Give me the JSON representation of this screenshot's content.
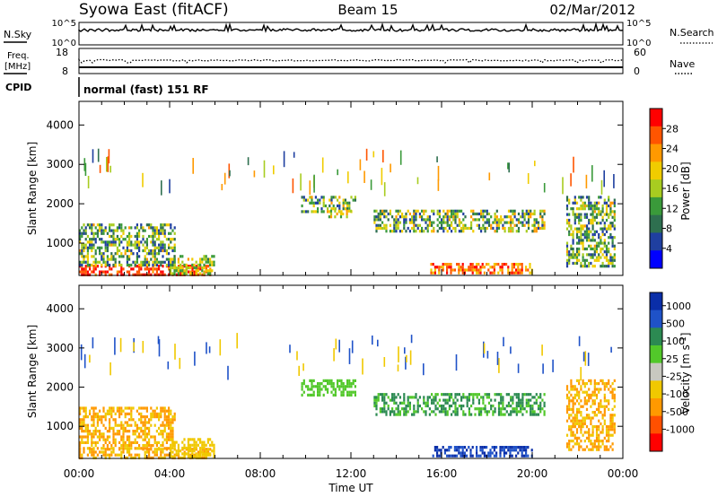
{
  "header": {
    "station": "Syowa East (fitACF)",
    "beam": "Beam 15",
    "date": "02/Mar/2012"
  },
  "summary_panels": {
    "nsky": {
      "label": "N.Sky",
      "right_label": "N.Search",
      "left_ticks": [
        "10^5",
        "10^0"
      ],
      "right_ticks": [
        "10^5",
        "10^0"
      ]
    },
    "freq": {
      "label_line1": "Freq.",
      "label_line2": "[MHz]",
      "right_label": "Nave",
      "left_ticks": [
        "18",
        "8"
      ],
      "right_ticks": [
        "60",
        "0"
      ]
    },
    "cpid": {
      "label": "CPID",
      "text": "normal (fast) 151 RF"
    }
  },
  "colors": {
    "power_scale": [
      "#0000ff",
      "#1f3fa0",
      "#2e6f4f",
      "#3a9a3a",
      "#a8cc20",
      "#f0cc00",
      "#ff9900",
      "#ff5500",
      "#ff0000"
    ],
    "velocity_scale": [
      "#0a2ea8",
      "#1f52c8",
      "#2c8a52",
      "#52c82a",
      "#c8c8c0",
      "#f0c800",
      "#ff9900",
      "#ff5000",
      "#ff0000"
    ]
  },
  "chart_data": [
    {
      "type": "heatmap",
      "name": "power",
      "ylabel": "Slant Range [km]",
      "yticks": [
        1000,
        2000,
        3000,
        4000
      ],
      "ylim": [
        180,
        4600
      ],
      "xlim": [
        0,
        24
      ],
      "colorbar": {
        "label": "Power [dB]",
        "ticks": [
          4,
          8,
          12,
          16,
          20,
          24,
          28
        ],
        "range": [
          0,
          32
        ]
      },
      "regions": [
        {
          "t0": 0.0,
          "t1": 5.8,
          "r0": 200,
          "r1": 450,
          "v0": 24,
          "v1": 32
        },
        {
          "t0": 0.0,
          "t1": 4.2,
          "r0": 450,
          "r1": 1500,
          "v0": 4,
          "v1": 22
        },
        {
          "t0": 4.0,
          "t1": 6.0,
          "r0": 250,
          "r1": 700,
          "v0": 10,
          "v1": 22
        },
        {
          "t0": 9.8,
          "t1": 12.2,
          "r0": 1800,
          "r1": 2200,
          "v0": 4,
          "v1": 22
        },
        {
          "t0": 11.0,
          "t1": 12.0,
          "r0": 1650,
          "r1": 1850,
          "v0": 12,
          "v1": 24
        },
        {
          "t0": 13.0,
          "t1": 20.5,
          "r0": 1300,
          "r1": 1850,
          "v0": 4,
          "v1": 24
        },
        {
          "t0": 15.5,
          "t1": 20.0,
          "r0": 250,
          "r1": 500,
          "v0": 18,
          "v1": 32
        },
        {
          "t0": 21.5,
          "t1": 23.6,
          "r0": 400,
          "r1": 2200,
          "v0": 4,
          "v1": 22
        }
      ]
    },
    {
      "type": "heatmap",
      "name": "velocity",
      "ylabel": "Slant Range [km]",
      "yticks": [
        1000,
        2000,
        3000,
        4000
      ],
      "ylim": [
        180,
        4600
      ],
      "xlim": [
        0,
        24
      ],
      "xlabel": "Time UT",
      "xticks": [
        "00:00",
        "04:00",
        "08:00",
        "12:00",
        "16:00",
        "20:00",
        "00:00"
      ],
      "colorbar": {
        "label": "Velocity [m s^-1]",
        "ticks": [
          "1000",
          "500",
          "100",
          "25",
          "-25",
          "-100",
          "-500",
          "-1000"
        ]
      },
      "regions": [
        {
          "t0": 0.0,
          "t1": 5.8,
          "r0": 200,
          "r1": 450,
          "v0": -1000,
          "v1": -100
        },
        {
          "t0": 0.0,
          "t1": 4.2,
          "r0": 450,
          "r1": 1500,
          "v0": -1000,
          "v1": -100
        },
        {
          "t0": 4.0,
          "t1": 6.0,
          "r0": 250,
          "r1": 700,
          "v0": -500,
          "v1": -100
        },
        {
          "t0": 9.8,
          "t1": 12.2,
          "r0": 1800,
          "r1": 2200,
          "v0": -25,
          "v1": 25
        },
        {
          "t0": 13.0,
          "t1": 20.5,
          "r0": 1300,
          "r1": 1850,
          "v0": -25,
          "v1": 100
        },
        {
          "t0": 15.5,
          "t1": 20.0,
          "r0": 250,
          "r1": 500,
          "v0": 100,
          "v1": 1000
        },
        {
          "t0": 21.5,
          "t1": 23.6,
          "r0": 400,
          "r1": 2200,
          "v0": -1000,
          "v1": -100
        }
      ]
    }
  ]
}
